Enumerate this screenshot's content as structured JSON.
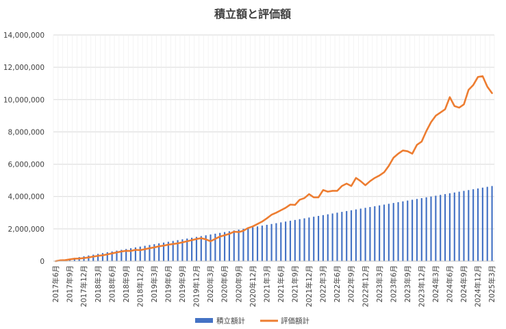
{
  "chart_data": {
    "type": "bar+line",
    "title": "積立額と評価額",
    "xlabel": "",
    "ylabel": "",
    "ylim": [
      0,
      14000000
    ],
    "yticks": [
      "0",
      "2,000,000",
      "4,000,000",
      "6,000,000",
      "8,000,000",
      "10,000,000",
      "12,000,000",
      "14,000,000"
    ],
    "x_tick_labels": [
      "2017年6月",
      "2017年9月",
      "2017年12月",
      "2018年3月",
      "2018年6月",
      "2018年9月",
      "2018年12月",
      "2019年3月",
      "2019年6月",
      "2019年9月",
      "2019年12月",
      "2020年3月",
      "2020年6月",
      "2020年9月",
      "2020年12月",
      "2021年3月",
      "2021年6月",
      "2021年9月",
      "2021年12月",
      "2022年3月",
      "2022年6月",
      "2022年9月",
      "2022年12月",
      "2023年3月",
      "2023年6月",
      "2023年9月",
      "2023年12月",
      "2024年3月",
      "2024年6月",
      "2024年9月",
      "2024年12月",
      "2025年3月"
    ],
    "x_start": "2017年6月",
    "x_end": "2025年3月",
    "grid": true,
    "legend_position": "bottom",
    "series": [
      {
        "name": "積立額計",
        "type": "bar",
        "color": "#4472C4",
        "values": [
          0,
          50000,
          100000,
          150000,
          200000,
          250000,
          300000,
          350000,
          400000,
          450000,
          500000,
          550000,
          600000,
          650000,
          700000,
          750000,
          800000,
          850000,
          900000,
          950000,
          1000000,
          1050000,
          1100000,
          1150000,
          1200000,
          1250000,
          1300000,
          1350000,
          1400000,
          1450000,
          1500000,
          1550000,
          1600000,
          1650000,
          1700000,
          1750000,
          1800000,
          1850000,
          1900000,
          1950000,
          2000000,
          2050000,
          2100000,
          2150000,
          2200000,
          2250000,
          2300000,
          2350000,
          2400000,
          2450000,
          2500000,
          2550000,
          2600000,
          2650000,
          2700000,
          2750000,
          2800000,
          2850000,
          2900000,
          2950000,
          3000000,
          3050000,
          3100000,
          3150000,
          3200000,
          3250000,
          3300000,
          3350000,
          3400000,
          3450000,
          3500000,
          3550000,
          3600000,
          3650000,
          3700000,
          3750000,
          3800000,
          3850000,
          3900000,
          3950000,
          4000000,
          4050000,
          4100000,
          4150000,
          4200000,
          4250000,
          4300000,
          4350000,
          4400000,
          4450000,
          4500000,
          4550000,
          4600000,
          4650000
        ]
      },
      {
        "name": "評価額計",
        "type": "line",
        "color": "#ED7D31",
        "values": [
          0,
          50000,
          60000,
          110000,
          150000,
          160000,
          190000,
          230000,
          280000,
          330000,
          360000,
          420000,
          480000,
          540000,
          600000,
          640000,
          630000,
          700000,
          680000,
          740000,
          800000,
          850000,
          920000,
          960000,
          1020000,
          1060000,
          1100000,
          1160000,
          1230000,
          1300000,
          1370000,
          1420000,
          1350000,
          1230000,
          1380000,
          1520000,
          1600000,
          1690000,
          1820000,
          1800000,
          1880000,
          2050000,
          2150000,
          2300000,
          2450000,
          2650000,
          2870000,
          3000000,
          3150000,
          3300000,
          3500000,
          3480000,
          3800000,
          3900000,
          4150000,
          3950000,
          3950000,
          4400000,
          4300000,
          4350000,
          4350000,
          4650000,
          4800000,
          4650000,
          5150000,
          4950000,
          4700000,
          4950000,
          5150000,
          5300000,
          5500000,
          5900000,
          6400000,
          6650000,
          6850000,
          6800000,
          6650000,
          7200000,
          7400000,
          8050000,
          8600000,
          9000000,
          9200000,
          9400000,
          10150000,
          9600000,
          9500000,
          9700000,
          10600000,
          10900000,
          11400000,
          11450000,
          10800000,
          10400000
        ]
      }
    ]
  }
}
